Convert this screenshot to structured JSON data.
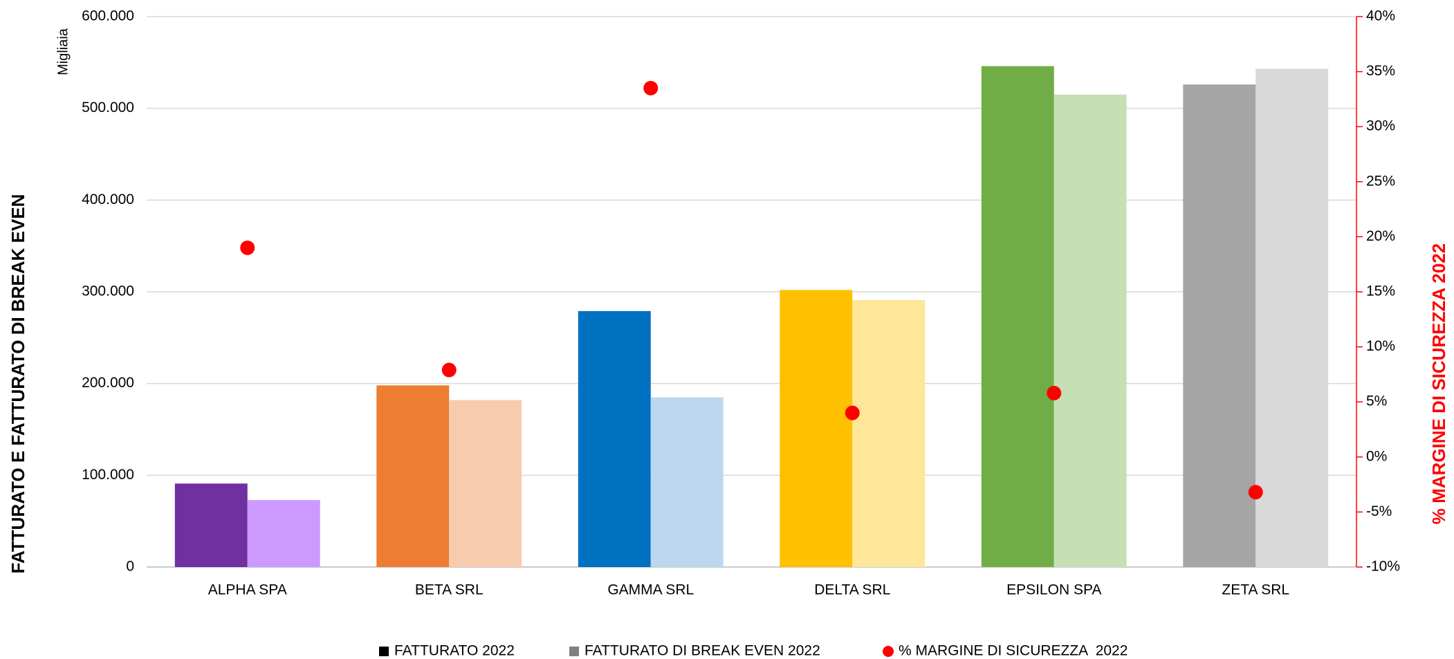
{
  "chart_data": {
    "type": "bar",
    "unit_label": "Migliaia",
    "y_label": "FATTURATO E FATTURATO DI BREAK EVEN",
    "y2_label": "% MARGINE DI SICUREZZA  2022",
    "categories": [
      "ALPHA SPA",
      "BETA SRL",
      "GAMMA SRL",
      "DELTA SRL",
      "EPSILON SPA",
      "ZETA SRL"
    ],
    "series": [
      {
        "name": "FATTURATO 2022",
        "color": "#000000",
        "colors": [
          "#7030a0",
          "#ed7d31",
          "#0070c0",
          "#ffc000",
          "#70ad47",
          "#a5a5a5"
        ],
        "values": [
          91000,
          198000,
          279000,
          302000,
          546000,
          526000
        ]
      },
      {
        "name": "FATTURATO DI BREAK EVEN 2022",
        "color": "#808080",
        "colors": [
          "#cc99ff",
          "#f8cbad",
          "#bdd7ee",
          "#ffe699",
          "#c5e0b4",
          "#d9d9d9"
        ],
        "values": [
          73000,
          182000,
          185000,
          291000,
          515000,
          543000
        ]
      },
      {
        "name": "% MARGINE DI SICUREZZA  2022",
        "color": "#ff0000",
        "type": "scatter",
        "axis": "y2",
        "values": [
          19.0,
          7.9,
          33.5,
          4.0,
          5.8,
          -3.2
        ]
      }
    ],
    "ylim": [
      0,
      600000
    ],
    "yticks": [
      0,
      {
        "value": 100000,
        "label": "100.000"
      },
      {
        "value": 200000,
        "label": "200.000"
      },
      {
        "value": 300000,
        "label": "300.000"
      },
      {
        "value": 400000,
        "label": "400.000"
      },
      {
        "value": 500000,
        "label": "500.000"
      },
      {
        "value": 600000,
        "label": "600.000"
      }
    ],
    "y2lim": [
      -10,
      40
    ],
    "y2ticks": [
      {
        "value": -10,
        "label": "-10%"
      },
      {
        "value": -5,
        "label": "-5%"
      },
      {
        "value": 0,
        "label": "0%"
      },
      {
        "value": 5,
        "label": "5%"
      },
      {
        "value": 10,
        "label": "10%"
      },
      {
        "value": 15,
        "label": "15%"
      },
      {
        "value": 20,
        "label": "20%"
      },
      {
        "value": 25,
        "label": "25%"
      },
      {
        "value": 30,
        "label": "30%"
      },
      {
        "value": 35,
        "label": "35%"
      },
      {
        "value": 40,
        "label": "40%"
      }
    ],
    "grid": true,
    "legend": "bottom"
  }
}
